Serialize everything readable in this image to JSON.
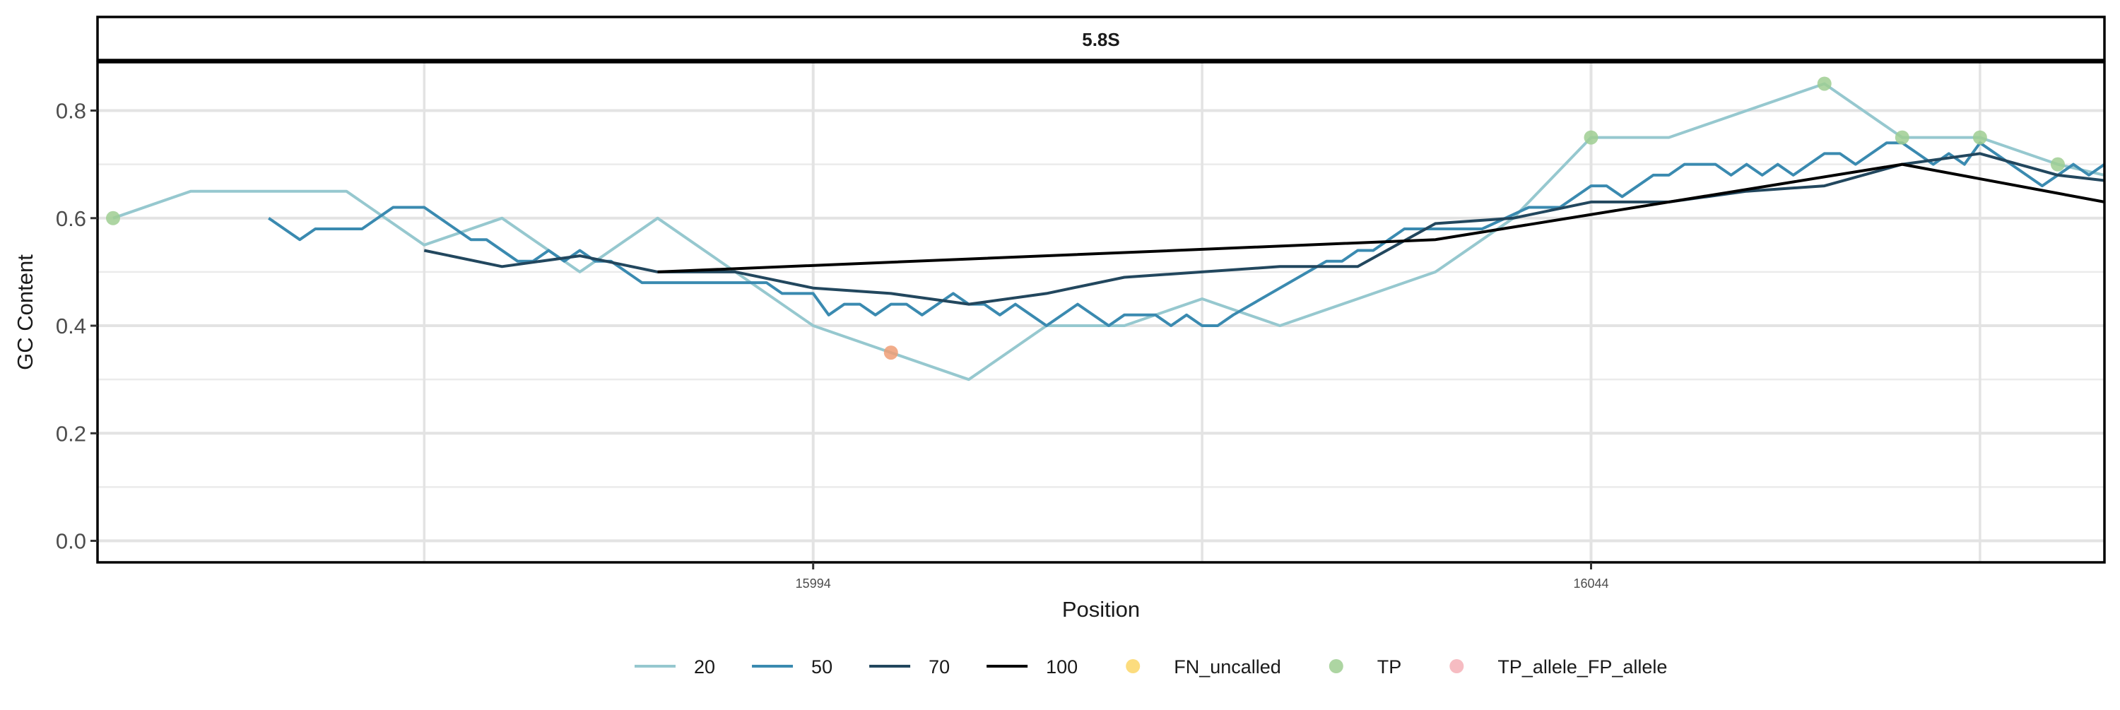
{
  "chart_data": {
    "type": "line",
    "facet_label": "5.8S",
    "xlabel": "Position",
    "ylabel": "GC Content",
    "xlim": [
      15948,
      16077
    ],
    "ylim": [
      -0.04,
      0.89
    ],
    "x_ticks": [
      15994,
      16044
    ],
    "x_tick_labels": [
      "15994",
      "16044"
    ],
    "x_minor_gridlines": [
      15969,
      16019,
      16069
    ],
    "y_ticks": [
      0.0,
      0.2,
      0.4,
      0.6,
      0.8
    ],
    "y_tick_labels": [
      "0.0",
      "0.2",
      "0.4",
      "0.6",
      "0.8"
    ],
    "grid": true,
    "legend_position": "bottom",
    "colors": {
      "20": "#96c8cf",
      "50": "#3a8ab0",
      "70": "#22475e",
      "100": "#000000",
      "FN_uncalled": "#fcd667",
      "TP": "#9fce92",
      "TP_allele_FP_allele": "#f4b0b7",
      "orange_point": "#ee9e75"
    },
    "series": [
      {
        "name": "20",
        "kind": "line",
        "points": [
          [
            15949,
            0.6
          ],
          [
            15954,
            0.65
          ],
          [
            15964,
            0.65
          ],
          [
            15969,
            0.55
          ],
          [
            15974,
            0.6
          ],
          [
            15979,
            0.5
          ],
          [
            15984,
            0.6
          ],
          [
            15989,
            0.5
          ],
          [
            15994,
            0.4
          ],
          [
            15999,
            0.35
          ],
          [
            16004,
            0.3
          ],
          [
            16009,
            0.4
          ],
          [
            16014,
            0.4
          ],
          [
            16019,
            0.45
          ],
          [
            16024,
            0.4
          ],
          [
            16029,
            0.45
          ],
          [
            16034,
            0.5
          ],
          [
            16039,
            0.6
          ],
          [
            16044,
            0.75
          ],
          [
            16049,
            0.75
          ],
          [
            16059,
            0.85
          ],
          [
            16064,
            0.75
          ],
          [
            16069,
            0.75
          ],
          [
            16074,
            0.7
          ],
          [
            16077,
            0.68
          ]
        ]
      },
      {
        "name": "50",
        "kind": "line",
        "points": [
          [
            15959,
            0.6
          ],
          [
            15961,
            0.56
          ],
          [
            15962,
            0.58
          ],
          [
            15965,
            0.58
          ],
          [
            15967,
            0.62
          ],
          [
            15969,
            0.62
          ],
          [
            15971,
            0.58
          ],
          [
            15972,
            0.56
          ],
          [
            15973,
            0.56
          ],
          [
            15975,
            0.52
          ],
          [
            15976,
            0.52
          ],
          [
            15977,
            0.54
          ],
          [
            15978,
            0.52
          ],
          [
            15979,
            0.54
          ],
          [
            15980,
            0.52
          ],
          [
            15981,
            0.52
          ],
          [
            15983,
            0.48
          ],
          [
            15991,
            0.48
          ],
          [
            15992,
            0.46
          ],
          [
            15994,
            0.46
          ],
          [
            15995,
            0.42
          ],
          [
            15996,
            0.44
          ],
          [
            15997,
            0.44
          ],
          [
            15998,
            0.42
          ],
          [
            15999,
            0.44
          ],
          [
            16000,
            0.44
          ],
          [
            16001,
            0.42
          ],
          [
            16002,
            0.44
          ],
          [
            16003,
            0.46
          ],
          [
            16004,
            0.44
          ],
          [
            16005,
            0.44
          ],
          [
            16006,
            0.42
          ],
          [
            16007,
            0.44
          ],
          [
            16008,
            0.42
          ],
          [
            16009,
            0.4
          ],
          [
            16011,
            0.44
          ],
          [
            16013,
            0.4
          ],
          [
            16014,
            0.42
          ],
          [
            16016,
            0.42
          ],
          [
            16017,
            0.4
          ],
          [
            16018,
            0.42
          ],
          [
            16019,
            0.4
          ],
          [
            16020,
            0.4
          ],
          [
            16021,
            0.42
          ],
          [
            16027,
            0.52
          ],
          [
            16028,
            0.52
          ],
          [
            16029,
            0.54
          ],
          [
            16030,
            0.54
          ],
          [
            16031,
            0.56
          ],
          [
            16032,
            0.58
          ],
          [
            16037,
            0.58
          ],
          [
            16040,
            0.62
          ],
          [
            16042,
            0.62
          ],
          [
            16044,
            0.66
          ],
          [
            16045,
            0.66
          ],
          [
            16046,
            0.64
          ],
          [
            16048,
            0.68
          ],
          [
            16049,
            0.68
          ],
          [
            16050,
            0.7
          ],
          [
            16052,
            0.7
          ],
          [
            16053,
            0.68
          ],
          [
            16054,
            0.7
          ],
          [
            16055,
            0.68
          ],
          [
            16056,
            0.7
          ],
          [
            16057,
            0.68
          ],
          [
            16058,
            0.7
          ],
          [
            16059,
            0.72
          ],
          [
            16060,
            0.72
          ],
          [
            16061,
            0.7
          ],
          [
            16063,
            0.74
          ],
          [
            16064,
            0.74
          ],
          [
            16065,
            0.72
          ],
          [
            16066,
            0.7
          ],
          [
            16067,
            0.72
          ],
          [
            16068,
            0.7
          ],
          [
            16069,
            0.74
          ],
          [
            16070,
            0.72
          ],
          [
            16071,
            0.7
          ],
          [
            16072,
            0.68
          ],
          [
            16073,
            0.66
          ],
          [
            16074,
            0.68
          ],
          [
            16075,
            0.7
          ],
          [
            16076,
            0.68
          ],
          [
            16077,
            0.7
          ]
        ]
      },
      {
        "name": "70",
        "kind": "line",
        "points": [
          [
            15969,
            0.54
          ],
          [
            15974,
            0.51
          ],
          [
            15979,
            0.53
          ],
          [
            15984,
            0.5
          ],
          [
            15989,
            0.5
          ],
          [
            15994,
            0.47
          ],
          [
            15999,
            0.46
          ],
          [
            16004,
            0.44
          ],
          [
            16009,
            0.46
          ],
          [
            16014,
            0.49
          ],
          [
            16019,
            0.5
          ],
          [
            16024,
            0.51
          ],
          [
            16029,
            0.51
          ],
          [
            16034,
            0.59
          ],
          [
            16039,
            0.6
          ],
          [
            16044,
            0.63
          ],
          [
            16049,
            0.63
          ],
          [
            16054,
            0.65
          ],
          [
            16059,
            0.66
          ],
          [
            16064,
            0.7
          ],
          [
            16069,
            0.72
          ],
          [
            16074,
            0.68
          ],
          [
            16077,
            0.67
          ]
        ]
      },
      {
        "name": "100",
        "kind": "line",
        "points": [
          [
            15984,
            0.5
          ],
          [
            16034,
            0.56
          ],
          [
            16064,
            0.7
          ],
          [
            16077,
            0.63
          ]
        ]
      },
      {
        "name": "FN_uncalled",
        "kind": "points",
        "points": []
      },
      {
        "name": "TP",
        "kind": "points",
        "points": [
          [
            15949,
            0.6
          ],
          [
            16044,
            0.75
          ],
          [
            16059,
            0.85
          ],
          [
            16064,
            0.75
          ],
          [
            16069,
            0.75
          ],
          [
            16074,
            0.7
          ]
        ]
      },
      {
        "name": "TP_allele_FP_allele",
        "kind": "points",
        "points": []
      },
      {
        "name": "",
        "kind": "points",
        "color_key": "orange_point",
        "points": [
          [
            15999,
            0.35
          ]
        ]
      }
    ],
    "legend": [
      {
        "label": "20",
        "symbol": "line",
        "color_key": "20"
      },
      {
        "label": "50",
        "symbol": "line",
        "color_key": "50"
      },
      {
        "label": "70",
        "symbol": "line",
        "color_key": "70"
      },
      {
        "label": "100",
        "symbol": "line",
        "color_key": "100"
      },
      {
        "label": "FN_uncalled",
        "symbol": "point",
        "color_key": "FN_uncalled"
      },
      {
        "label": "TP",
        "symbol": "point",
        "color_key": "TP"
      },
      {
        "label": "TP_allele_FP_allele",
        "symbol": "point",
        "color_key": "TP_allele_FP_allele"
      }
    ]
  }
}
